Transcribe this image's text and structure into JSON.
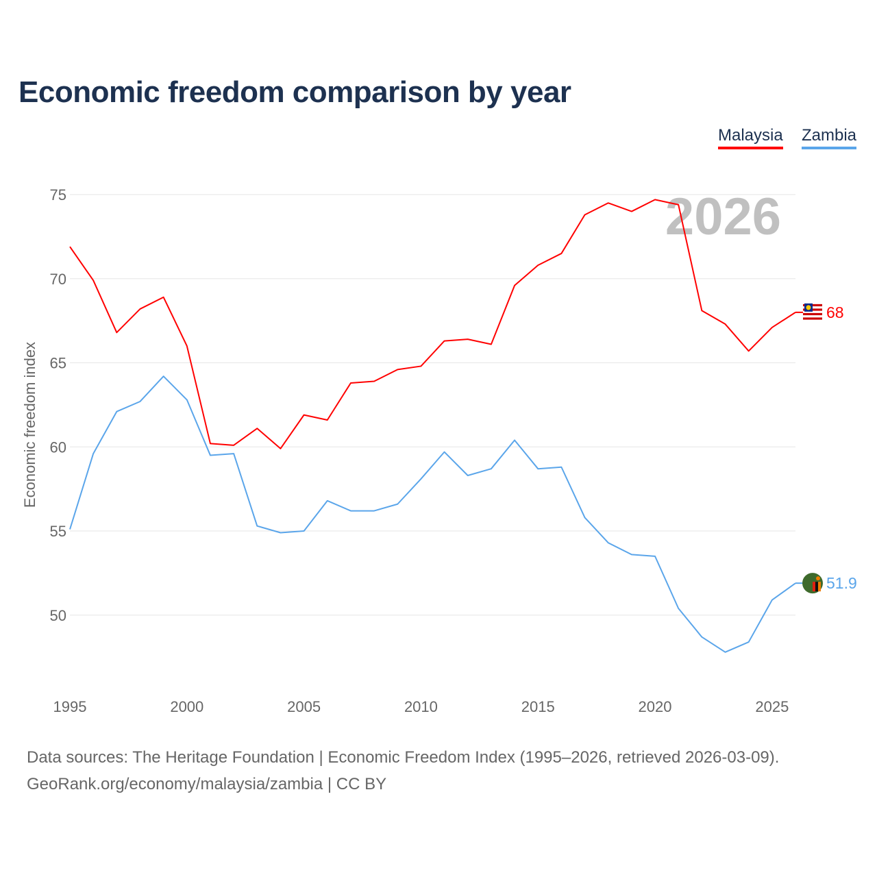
{
  "title": "Economic freedom comparison by year",
  "footer": {
    "line1": "Data sources: The Heritage Foundation | Economic Freedom Index (1995–2026, retrieved 2026-03-09).",
    "line2": "GeoRank.org/economy/malaysia/zambia | CC BY"
  },
  "chart_data": {
    "type": "line",
    "title": "Economic freedom comparison by year",
    "xlabel": "",
    "ylabel": "Economic freedom index",
    "year_watermark": "2026",
    "x": [
      1995,
      1996,
      1997,
      1998,
      1999,
      2000,
      2001,
      2002,
      2003,
      2004,
      2005,
      2006,
      2007,
      2008,
      2009,
      2010,
      2011,
      2012,
      2013,
      2014,
      2015,
      2016,
      2017,
      2018,
      2019,
      2020,
      2021,
      2022,
      2023,
      2024,
      2025,
      2026
    ],
    "xticks": [
      "1995",
      "2000",
      "2005",
      "2010",
      "2015",
      "2020",
      "2025"
    ],
    "yticks": [
      "50",
      "55",
      "60",
      "65",
      "70",
      "75"
    ],
    "ylim": [
      46,
      77
    ],
    "grid": true,
    "legend_position": "top-right",
    "series": [
      {
        "name": "Malaysia",
        "color": "#ff0000",
        "end_label": "68",
        "values": [
          71.9,
          69.9,
          66.8,
          68.2,
          68.9,
          66.0,
          60.2,
          60.1,
          61.1,
          59.9,
          61.9,
          61.6,
          63.8,
          63.9,
          64.6,
          64.8,
          66.3,
          66.4,
          66.1,
          69.6,
          70.8,
          71.5,
          73.8,
          74.5,
          74.0,
          74.7,
          74.4,
          68.1,
          67.3,
          65.7,
          67.1,
          68.0
        ]
      },
      {
        "name": "Zambia",
        "color": "#5aa5ea",
        "end_label": "51.9",
        "values": [
          55.1,
          59.6,
          62.1,
          62.7,
          64.2,
          62.8,
          59.5,
          59.6,
          55.3,
          54.9,
          55.0,
          56.8,
          56.2,
          56.2,
          56.6,
          58.1,
          59.7,
          58.3,
          58.7,
          60.4,
          58.7,
          58.8,
          55.8,
          54.3,
          53.6,
          53.5,
          50.4,
          48.7,
          47.8,
          48.4,
          50.9,
          51.9
        ]
      }
    ]
  }
}
